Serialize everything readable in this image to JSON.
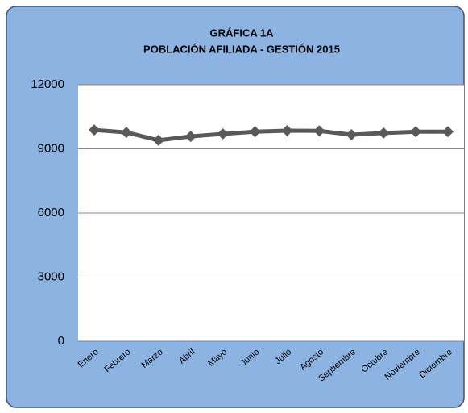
{
  "chart_data": {
    "type": "line",
    "title": "GRÁFICA 1A",
    "subtitle": "POBLACIÓN AFILIADA - GESTIÓN 2015",
    "categories": [
      "Enero",
      "Febrero",
      "Marzo",
      "Abril",
      "Mayo",
      "Junio",
      "Julio",
      "Agosto",
      "Septiembre",
      "Octubre",
      "Noviembre",
      "Diciembre"
    ],
    "values": [
      9880,
      9770,
      9400,
      9580,
      9700,
      9800,
      9850,
      9840,
      9660,
      9740,
      9800,
      9800
    ],
    "color": "#595959",
    "ylim": [
      0,
      12000
    ],
    "yticks": [
      0,
      3000,
      6000,
      9000,
      12000
    ],
    "grid": true
  }
}
